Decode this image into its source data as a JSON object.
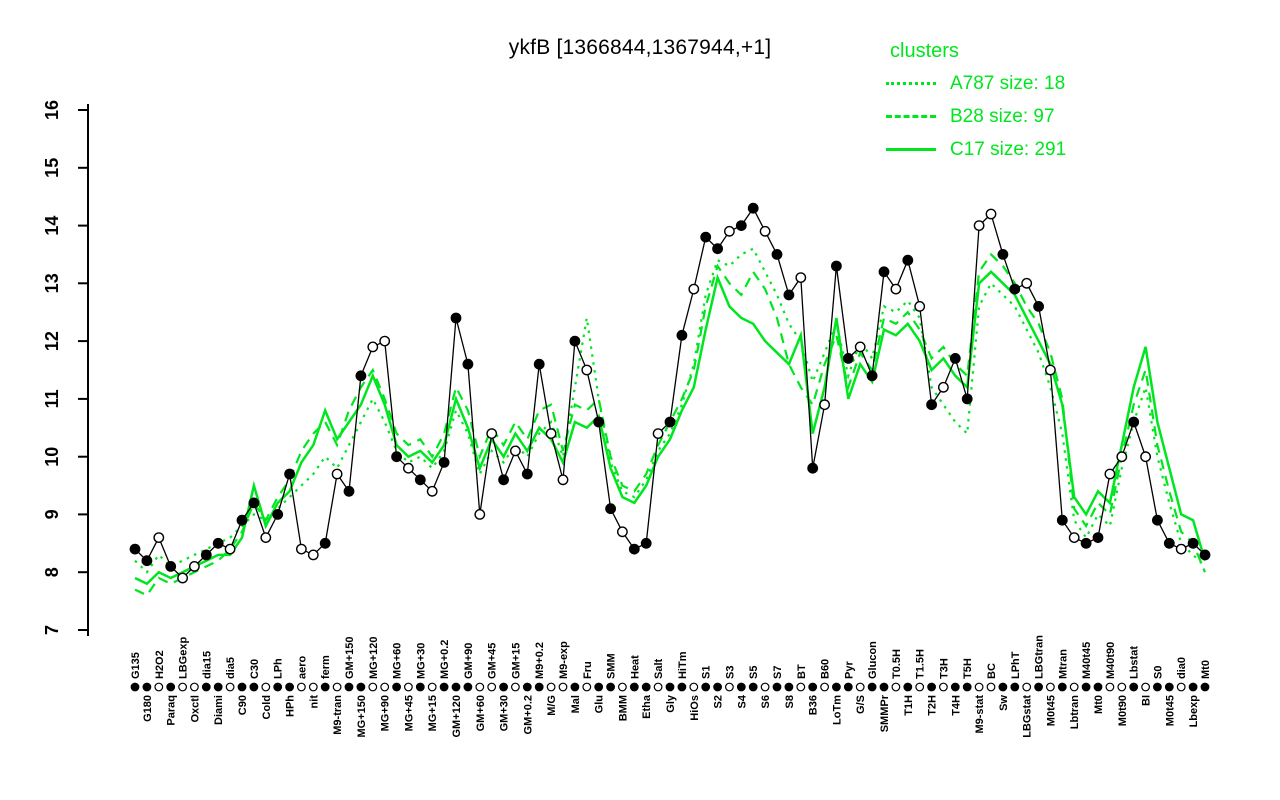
{
  "title": "ykfB [1366844,1367944,+1]",
  "legend": {
    "heading": "clusters",
    "items": [
      {
        "label": "A787 size: 18",
        "style": "dotted"
      },
      {
        "label": "B28 size: 97",
        "style": "dashed"
      },
      {
        "label": "C17 size: 291",
        "style": "solid"
      }
    ]
  },
  "colors": {
    "cluster_green": "#00e61e",
    "profile_black": "#000000",
    "background": "#ffffff"
  },
  "axes": {
    "y_ticks": [
      7,
      8,
      9,
      10,
      11,
      12,
      13,
      14,
      15,
      16
    ],
    "y_min": 7,
    "y_max": 16
  },
  "chart_data": {
    "type": "line",
    "title": "ykfB [1366844,1367944,+1]",
    "xlabel": "",
    "ylabel": "",
    "ylim": [
      7,
      16
    ],
    "grid": false,
    "legend_position": "top-right",
    "legend_title": "clusters",
    "categories": [
      "G135",
      "G180",
      "H2O2",
      "Paraq",
      "LBGexp",
      "Oxctl",
      "dia15",
      "Diami",
      "dia5",
      "C90",
      "C30",
      "Cold",
      "LPh",
      "HPh",
      "aero",
      "nit",
      "ferm",
      "M9-tran",
      "GM+150",
      "MG+150",
      "MG+120",
      "MG+90",
      "MG+60",
      "MG+45",
      "MG+30",
      "MG+15",
      "MG+0.2",
      "GM+120",
      "GM+90",
      "GM+60",
      "GM+45",
      "GM+30",
      "GM+15",
      "GM+0.2",
      "M9+0.2",
      "M/G",
      "M9-exp",
      "Mal",
      "Fru",
      "Glu",
      "SMM",
      "BMM",
      "Heat",
      "Etha",
      "Salt",
      "Gly",
      "HiTm",
      "HiOs",
      "S1",
      "S2",
      "S3",
      "S4",
      "S5",
      "S6",
      "S7",
      "S8",
      "BT",
      "B36",
      "B60",
      "LoTm",
      "Pyr",
      "G/S",
      "Glucon",
      "SMMPr",
      "T0.5H",
      "T1H",
      "T1.5H",
      "T2H",
      "T3H",
      "T4H",
      "T5H",
      "M9-stat",
      "BC",
      "Sw",
      "LPhT",
      "LBGstat",
      "LBGtran",
      "M0t45",
      "Mtran",
      "Lbtran",
      "M40t45",
      "Mt0",
      "M40t90",
      "M0t90",
      "Lbstat",
      "BI",
      "S0",
      "M0t45",
      "dia0",
      "Lbexp",
      "Mt0"
    ],
    "series": [
      {
        "name": "ykfB profile",
        "color": "black",
        "line": "solid",
        "marker": "circle",
        "values": [
          8.4,
          8.2,
          8.6,
          8.1,
          7.9,
          8.1,
          8.3,
          8.5,
          8.4,
          8.9,
          9.2,
          8.6,
          9.0,
          9.7,
          8.4,
          8.3,
          8.5,
          9.7,
          9.4,
          11.4,
          11.9,
          12.0,
          10.0,
          9.8,
          9.6,
          9.4,
          9.9,
          12.4,
          11.6,
          9.0,
          10.4,
          9.6,
          10.1,
          9.7,
          11.6,
          10.4,
          9.6,
          12.0,
          11.5,
          10.6,
          9.1,
          8.7,
          8.4,
          8.5,
          10.4,
          10.6,
          12.1,
          12.9,
          13.8,
          13.6,
          13.9,
          14.0,
          14.3,
          13.9,
          13.5,
          12.8,
          13.1,
          9.8,
          10.9,
          13.3,
          11.7,
          11.9,
          11.4,
          13.2,
          12.9,
          13.4,
          12.6,
          10.9,
          11.2,
          11.7,
          11.0,
          14.0,
          14.2,
          13.5,
          12.9,
          13.0,
          12.6,
          11.5,
          8.9,
          8.6,
          8.5,
          8.6,
          9.7,
          10.0,
          10.6,
          10.0,
          8.9,
          8.5,
          8.4,
          8.5,
          8.3
        ]
      },
      {
        "name": "A787 size: 18",
        "color": "green",
        "line": "dotted",
        "values": [
          8.2,
          8.0,
          8.3,
          8.1,
          8.2,
          8.3,
          8.4,
          8.5,
          8.6,
          8.8,
          9.0,
          8.9,
          9.1,
          9.3,
          9.5,
          9.7,
          10.0,
          9.8,
          10.2,
          10.6,
          11.0,
          10.6,
          10.1,
          9.9,
          10.0,
          9.8,
          10.1,
          10.8,
          10.4,
          9.7,
          10.1,
          9.9,
          10.2,
          10.0,
          10.4,
          10.6,
          10.0,
          11.2,
          12.4,
          11.0,
          9.9,
          9.4,
          9.3,
          9.6,
          10.1,
          10.4,
          10.9,
          11.6,
          12.8,
          13.4,
          13.3,
          13.5,
          13.6,
          13.2,
          12.8,
          12.3,
          12.0,
          11.3,
          11.8,
          12.3,
          11.4,
          12.0,
          11.7,
          12.6,
          12.5,
          12.7,
          12.4,
          11.2,
          10.9,
          10.6,
          10.4,
          12.6,
          13.0,
          12.8,
          12.6,
          12.2,
          11.8,
          11.2,
          10.4,
          8.9,
          8.6,
          9.0,
          8.8,
          9.8,
          10.6,
          11.2,
          10.0,
          9.2,
          8.5,
          8.3,
          8.1
        ]
      },
      {
        "name": "B28 size: 97",
        "color": "green",
        "line": "dashed",
        "values": [
          7.7,
          7.6,
          7.9,
          7.8,
          7.9,
          8.0,
          8.1,
          8.2,
          8.4,
          8.7,
          9.2,
          8.9,
          9.3,
          9.6,
          10.1,
          10.4,
          10.6,
          10.2,
          10.8,
          11.2,
          11.5,
          11.0,
          10.4,
          10.2,
          10.3,
          10.0,
          10.4,
          11.2,
          10.8,
          10.0,
          10.5,
          10.2,
          10.6,
          10.3,
          10.8,
          10.9,
          10.1,
          10.9,
          10.8,
          11.0,
          10.0,
          9.5,
          9.4,
          9.7,
          10.2,
          10.6,
          11.0,
          11.5,
          12.6,
          13.3,
          13.0,
          12.8,
          13.2,
          12.9,
          12.4,
          11.6,
          11.2,
          10.9,
          11.6,
          12.1,
          11.2,
          11.8,
          11.5,
          12.4,
          12.3,
          12.5,
          12.2,
          11.7,
          11.9,
          11.6,
          11.4,
          13.2,
          13.5,
          13.3,
          13.0,
          12.6,
          12.3,
          11.8,
          11.0,
          9.1,
          8.8,
          9.2,
          9.0,
          10.0,
          10.9,
          11.5,
          10.2,
          9.4,
          8.7,
          8.5,
          8.0
        ]
      },
      {
        "name": "C17 size: 291",
        "color": "green",
        "line": "solid",
        "values": [
          7.9,
          7.8,
          8.0,
          7.9,
          8.0,
          8.1,
          8.2,
          8.3,
          8.3,
          8.6,
          9.5,
          8.8,
          9.2,
          9.4,
          9.9,
          10.2,
          10.8,
          10.3,
          10.6,
          10.9,
          11.4,
          10.9,
          10.2,
          10.0,
          10.1,
          9.9,
          10.2,
          11.0,
          10.5,
          9.8,
          10.3,
          10.0,
          10.4,
          10.1,
          10.5,
          10.3,
          9.9,
          10.6,
          10.5,
          10.7,
          9.8,
          9.3,
          9.2,
          9.5,
          10.0,
          10.3,
          10.8,
          11.2,
          12.2,
          13.1,
          12.6,
          12.4,
          12.3,
          12.0,
          11.8,
          11.6,
          12.1,
          10.4,
          11.2,
          12.4,
          11.0,
          11.6,
          11.3,
          12.2,
          12.1,
          12.3,
          12.0,
          11.5,
          11.7,
          11.4,
          11.2,
          13.0,
          13.2,
          13.0,
          12.8,
          12.4,
          12.0,
          11.6,
          10.9,
          9.3,
          9.0,
          9.4,
          9.2,
          10.2,
          11.2,
          11.9,
          10.6,
          9.8,
          9.0,
          8.9,
          8.2
        ]
      }
    ],
    "marker_fill": [
      1,
      1,
      0,
      1,
      0,
      0,
      1,
      1,
      0,
      1,
      1,
      0,
      1,
      1,
      0,
      0,
      1,
      0,
      1,
      1,
      0,
      0,
      1,
      0,
      1,
      0,
      1,
      1,
      1,
      0,
      0,
      1,
      0,
      1,
      1,
      0,
      0,
      1,
      0,
      1,
      1,
      0,
      1,
      1,
      0,
      1,
      1,
      0,
      1,
      1,
      0,
      1,
      1,
      0,
      1,
      1,
      0,
      1,
      0,
      1,
      1,
      0,
      1,
      1,
      0,
      1,
      0,
      1,
      0,
      1,
      1,
      0,
      0,
      1,
      1,
      0,
      1,
      0,
      1,
      0,
      1,
      1,
      0,
      0,
      1,
      0,
      1,
      1,
      0,
      1,
      1
    ]
  }
}
